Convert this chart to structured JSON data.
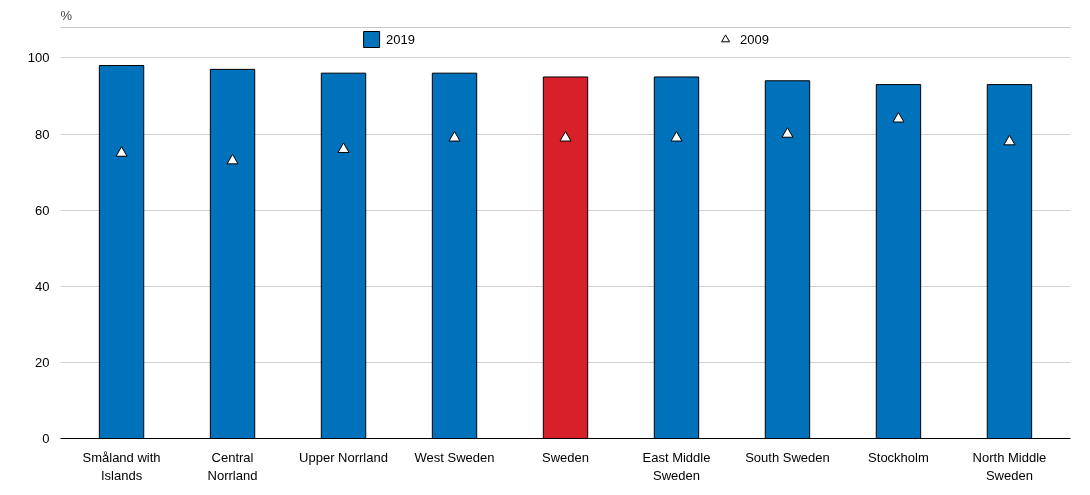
{
  "chart_data": {
    "type": "bar",
    "ylabel": "%",
    "categories": [
      "Småland with Islands",
      "Central Norrland",
      "Upper Norrland",
      "West Sweden",
      "Sweden",
      "East Middle Sweden",
      "South Sweden",
      "Stockholm",
      "North Middle Sweden"
    ],
    "series": [
      {
        "name": "2019",
        "colors": [
          "#0072bb",
          "#0072bb",
          "#0072bb",
          "#0072bb",
          "#d7202a",
          "#0072bb",
          "#0072bb",
          "#0072bb",
          "#0072bb"
        ],
        "values": [
          98,
          97,
          96,
          96,
          95,
          95,
          94,
          93,
          93
        ]
      },
      {
        "name": "2009",
        "type": "scatter",
        "marker": "triangle",
        "color": "#ffffff",
        "values": [
          75,
          73,
          76,
          79,
          79,
          79,
          80,
          84,
          78
        ]
      }
    ],
    "ylim": [
      0,
      108
    ],
    "yticks": [
      0,
      20,
      40,
      60,
      80,
      100
    ],
    "grid": "y",
    "legend": "top"
  }
}
